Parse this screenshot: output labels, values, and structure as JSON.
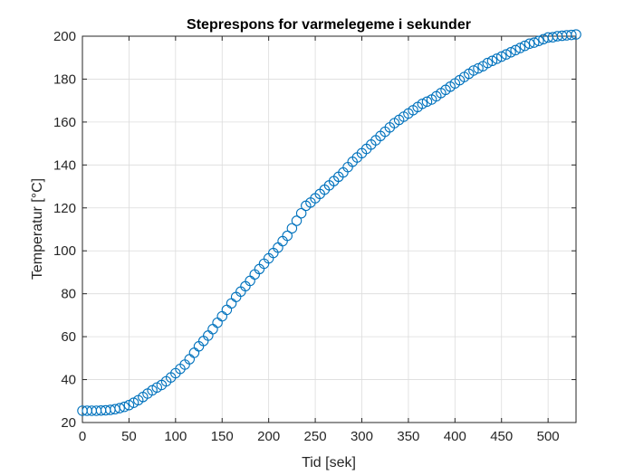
{
  "chart_data": {
    "type": "scatter",
    "title": "Steprespons for varmelegeme i sekunder",
    "xlabel": "Tid [sek]",
    "ylabel": "Temperatur [°C]",
    "xlim": [
      0,
      530
    ],
    "ylim": [
      20,
      200
    ],
    "xticks": [
      0,
      50,
      100,
      150,
      200,
      250,
      300,
      350,
      400,
      450,
      500
    ],
    "yticks": [
      20,
      40,
      60,
      80,
      100,
      120,
      140,
      160,
      180,
      200
    ],
    "xtick_labels": [
      "0",
      "50",
      "100",
      "150",
      "200",
      "250",
      "300",
      "350",
      "400",
      "450",
      "500"
    ],
    "ytick_labels": [
      "20",
      "40",
      "60",
      "80",
      "100",
      "120",
      "140",
      "160",
      "180",
      "200"
    ],
    "grid": true,
    "marker": "circle",
    "color": "#0072BD",
    "series": [
      {
        "x": [
          0,
          5,
          10,
          15,
          20,
          25,
          30,
          35,
          40,
          45,
          50,
          55,
          60,
          65,
          70,
          75,
          80,
          85,
          90,
          95,
          100,
          105,
          110,
          115,
          120,
          125,
          130,
          135,
          140,
          145,
          150,
          155,
          160,
          165,
          170,
          175,
          180,
          185,
          190,
          195,
          200,
          205,
          210,
          215,
          220,
          225,
          230,
          235,
          240,
          245,
          250,
          255,
          260,
          265,
          270,
          275,
          280,
          285,
          290,
          295,
          300,
          305,
          310,
          315,
          320,
          325,
          330,
          335,
          340,
          345,
          350,
          355,
          360,
          365,
          370,
          375,
          380,
          385,
          390,
          395,
          400,
          405,
          410,
          415,
          420,
          425,
          430,
          435,
          440,
          445,
          450,
          455,
          460,
          465,
          470,
          475,
          480,
          485,
          490,
          495,
          500,
          505,
          510,
          515,
          520,
          525,
          530
        ],
        "y": [
          25.5,
          25.5,
          25.5,
          25.5,
          25.6,
          25.7,
          25.9,
          26.2,
          26.7,
          27.3,
          28.1,
          29.2,
          30.4,
          31.9,
          33.5,
          35.0,
          36.3,
          37.5,
          39.2,
          41.0,
          43.0,
          45.0,
          47.0,
          49.5,
          52.5,
          55.5,
          58.0,
          60.5,
          63.5,
          66.5,
          69.5,
          72.5,
          75.5,
          78.5,
          81.0,
          83.5,
          86.0,
          89.0,
          91.5,
          94.0,
          96.5,
          99.0,
          101.5,
          104.5,
          107.0,
          110.5,
          114.0,
          117.5,
          121.0,
          122.5,
          124.5,
          126.5,
          128.5,
          130.5,
          132.5,
          134.5,
          136.5,
          139.0,
          141.5,
          143.5,
          145.5,
          147.5,
          149.5,
          151.5,
          153.5,
          155.5,
          157.5,
          159.5,
          161.0,
          162.5,
          164.0,
          165.5,
          167.0,
          168.5,
          169.5,
          170.5,
          172.0,
          173.5,
          175.0,
          176.5,
          178.0,
          179.5,
          181.0,
          182.5,
          184.0,
          185.0,
          186.0,
          187.5,
          188.5,
          189.5,
          190.5,
          191.5,
          192.5,
          193.5,
          194.5,
          195.5,
          196.5,
          197.0,
          197.8,
          198.6,
          199.4,
          199.5,
          200.0,
          200.2,
          200.4,
          200.6,
          200.8
        ]
      }
    ]
  }
}
